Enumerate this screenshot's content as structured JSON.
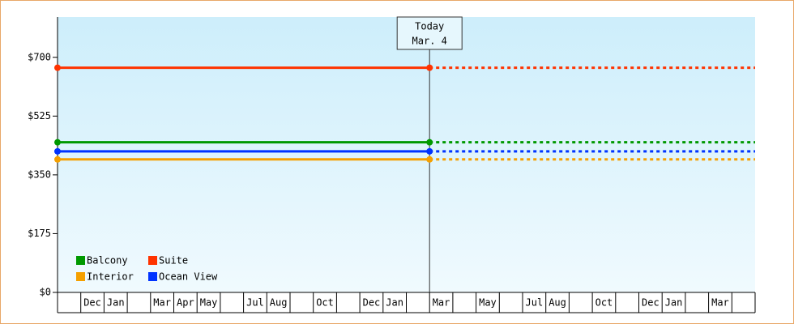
{
  "chart_data": {
    "type": "line",
    "categories": [
      null,
      "Dec",
      "Jan",
      null,
      "Mar",
      "Apr",
      "May",
      null,
      "Jul",
      "Aug",
      null,
      "Oct",
      null,
      "Dec",
      "Jan",
      null,
      "Mar",
      null,
      "May",
      null,
      "Jul",
      "Aug",
      null,
      "Oct",
      null,
      "Dec",
      "Jan",
      null,
      "Mar",
      null
    ],
    "series": [
      {
        "name": "Balcony",
        "color": "#009900",
        "values": [
          447,
          447,
          447,
          447,
          447,
          447,
          447,
          447,
          447,
          447,
          447,
          447,
          447,
          447,
          447,
          447,
          447,
          null,
          null,
          null,
          null,
          null,
          null,
          null,
          null,
          null,
          null,
          null,
          null,
          null
        ]
      },
      {
        "name": "Suite",
        "color": "#ff3300",
        "values": [
          669,
          669,
          669,
          669,
          669,
          669,
          669,
          669,
          669,
          669,
          669,
          669,
          669,
          669,
          669,
          669,
          669,
          null,
          null,
          null,
          null,
          null,
          null,
          null,
          null,
          null,
          null,
          null,
          null,
          null
        ]
      },
      {
        "name": "Interior",
        "color": "#f5a000",
        "values": [
          396,
          396,
          396,
          396,
          396,
          396,
          396,
          396,
          396,
          396,
          396,
          396,
          396,
          396,
          396,
          396,
          396,
          null,
          null,
          null,
          null,
          null,
          null,
          null,
          null,
          null,
          null,
          null,
          null,
          null
        ]
      },
      {
        "name": "Ocean View",
        "color": "#0033ff",
        "values": [
          420,
          420,
          420,
          420,
          420,
          420,
          420,
          420,
          420,
          420,
          420,
          420,
          420,
          420,
          420,
          420,
          420,
          null,
          null,
          null,
          null,
          null,
          null,
          null,
          null,
          null,
          null,
          null,
          null,
          null
        ]
      }
    ],
    "today": {
      "label": "Today",
      "date": "Mar. 4"
    },
    "ylim": [
      0,
      820
    ],
    "yticks": [
      {
        "value": 0,
        "label": "$0"
      },
      {
        "value": 175,
        "label": "$175"
      },
      {
        "value": 350,
        "label": "$350"
      },
      {
        "value": 525,
        "label": "$525"
      },
      {
        "value": 700,
        "label": "$700"
      }
    ],
    "legend": "lower left"
  }
}
